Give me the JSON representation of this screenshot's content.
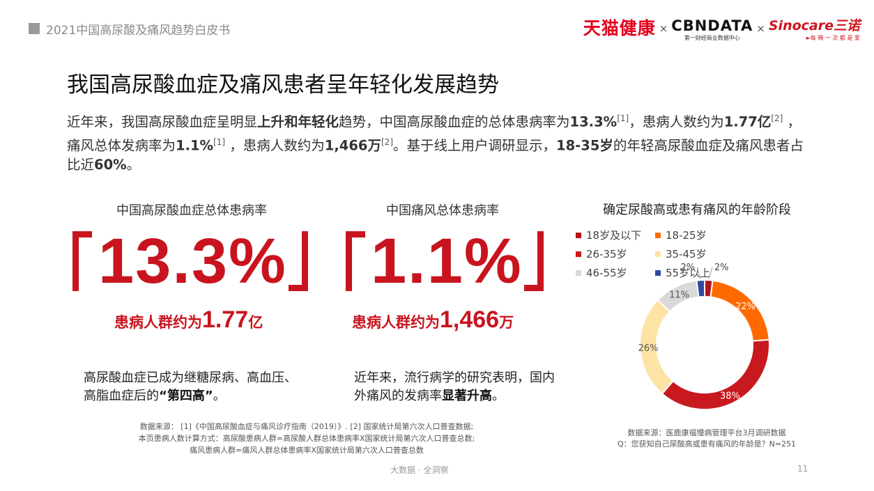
{
  "header": {
    "title": "2021中国高尿酸及痛风趋势白皮书"
  },
  "logos": {
    "tmall": "天猫健康",
    "separator": "×",
    "cbn_main": "CBNDATA",
    "cbn_sub": "第一财经商业数据中心",
    "sino_main": "Sinocare三诺",
    "sino_sub": "►每 隔 一 次 都 是 爱"
  },
  "main_title": "我国高尿酸血症及痛风患者呈年轻化发展趋势",
  "intro": {
    "p1": "近年来，我国高尿酸血症呈明显",
    "b1": "上升和年轻化",
    "p2": "趋势，中国高尿酸血症的总体患病率为",
    "b2": "13.3%",
    "ref1": "[1]",
    "p3": "，患病人数约为",
    "b3": "1.77亿",
    "ref2": "[2]",
    "p4": " ，痛风总体发病率为",
    "b4": "1.1%",
    "ref3": "[1]",
    "p5": " ，患病人数约为",
    "b5": "1,466万",
    "ref4": "[2]",
    "p6": "。基于线上用户调研显示，",
    "b6": "18-35岁",
    "p7": "的年轻高尿酸血症及痛风患者占比近",
    "b7": "60%",
    "p8": "。"
  },
  "stats": [
    {
      "label": "中国高尿酸血症总体患病率",
      "value": "13.3%",
      "sub_prefix": "患病人群约为",
      "sub_value": "1.77",
      "sub_unit": "亿",
      "note_p1": "高尿酸血症已成为继糖尿病、高血压、",
      "note_p2": "高脂血症后的",
      "note_b": "“第四高”",
      "note_p3": "。"
    },
    {
      "label": "中国痛风总体患病率",
      "value": "1.1%",
      "sub_prefix": "患病人群约为",
      "sub_value": "1,466",
      "sub_unit": "万",
      "note_p1": "近年来，流行病学的研究表明，国内",
      "note_p2": "外痛风的发病率",
      "note_b": "显著升高",
      "note_p3": "。"
    }
  ],
  "source_left": {
    "line1": "数据来源： [1]《中国高尿酸血症与痛风诊疗指南（2019）》. [2] 国家统计局第六次人口普查数据;",
    "line2": "本页患病人数计算方式：高尿酸患病人群=高尿酸人群总体患病率X国家统计局第六次人口普查总数;",
    "line3": "痛风患病人群=痛风人群总体患病率X国家统计局第六次人口普查总数"
  },
  "source_right": {
    "line1": "数据来源：医鹿康福慢病管理平台3月调研数据",
    "line2": "Q：您获知自己尿酸高或患有痛风的年龄是？N=251"
  },
  "footer": {
    "text": "大数据 · 全洞察",
    "page": "11"
  },
  "chart_data": {
    "type": "pie",
    "title": "确定尿酸高或患有痛风的年龄阶段",
    "legend_position": "top",
    "categories": [
      "18岁及以下",
      "18-25岁",
      "26-35岁",
      "35-45岁",
      "46-55岁",
      "55岁以上"
    ],
    "values": [
      2,
      22,
      38,
      26,
      11,
      2
    ],
    "labels": [
      "2%",
      "22%",
      "38%",
      "26%",
      "11%",
      "2%"
    ],
    "colors": [
      "#b5141c",
      "#ff6a00",
      "#c8191f",
      "#fde3a4",
      "#d9d9d9",
      "#2e4a9e"
    ],
    "label_colors": [
      "#444444",
      "#ffffff",
      "#ffffff",
      "#555555",
      "#555555",
      "#444444"
    ]
  }
}
